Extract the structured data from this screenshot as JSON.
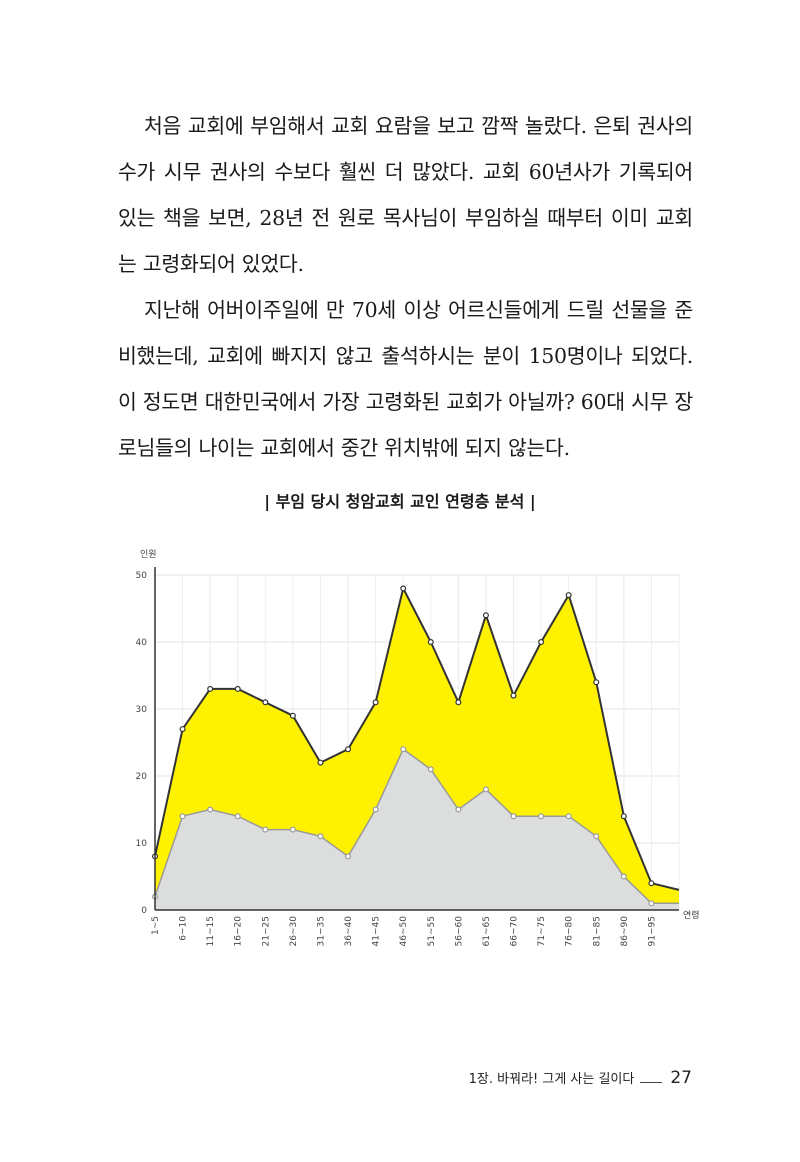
{
  "body": {
    "paragraphs": [
      "처음 교회에 부임해서 교회 요람을 보고 깜짝 놀랐다. 은퇴 권사의 수가 시무 권사의 수보다 훨씬 더 많았다. 교회 60년사가 기록되어 있는 책을 보면, 28년 전 원로 목사님이 부임하실 때부터 이미 교회는 고령화되어 있었다.",
      "지난해 어버이주일에 만 70세 이상 어르신들에게 드릴 선물을 준비했는데, 교회에 빠지지 않고 출석하시는 분이 150명이나 되었다. 이 정도면 대한민국에서 가장 고령화된 교회가 아닐까? 60대 시무 장로님들의 나이는 교회에서 중간 위치밖에 되지 않는다."
    ]
  },
  "chart_title": "| 부임 당시 청암교회 교인 연령층 분석 |",
  "chart_data": {
    "type": "area",
    "title": "| 부임 당시 청암교회 교인 연령층 분석 |",
    "ylabel": "인원",
    "xlabel": "연령",
    "ylim": [
      0,
      50
    ],
    "yticks": [
      0,
      10,
      20,
      30,
      40,
      50
    ],
    "grid": true,
    "categories": [
      "1~5",
      "6~10",
      "11~15",
      "16~20",
      "21~25",
      "26~30",
      "31~35",
      "36~40",
      "41~45",
      "46~50",
      "51~55",
      "56~60",
      "61~65",
      "66~70",
      "71~75",
      "76~80",
      "81~85",
      "86~90",
      "91~95",
      ""
    ],
    "series": [
      {
        "values": [
          8,
          27,
          33,
          33,
          31,
          29,
          22,
          24,
          31,
          48,
          40,
          31,
          44,
          32,
          40,
          47,
          34,
          14,
          4,
          3
        ],
        "color": "#fff200",
        "line": "#333333"
      },
      {
        "values": [
          2,
          14,
          15,
          14,
          12,
          12,
          11,
          8,
          15,
          24,
          21,
          15,
          18,
          14,
          14,
          14,
          11,
          5,
          1,
          1
        ],
        "color": "#dcdddd",
        "line": "#9a9a9a"
      }
    ]
  },
  "footer": {
    "chapter": "1장. 바꿔라! 그게 사는 길이다",
    "page": "27"
  }
}
